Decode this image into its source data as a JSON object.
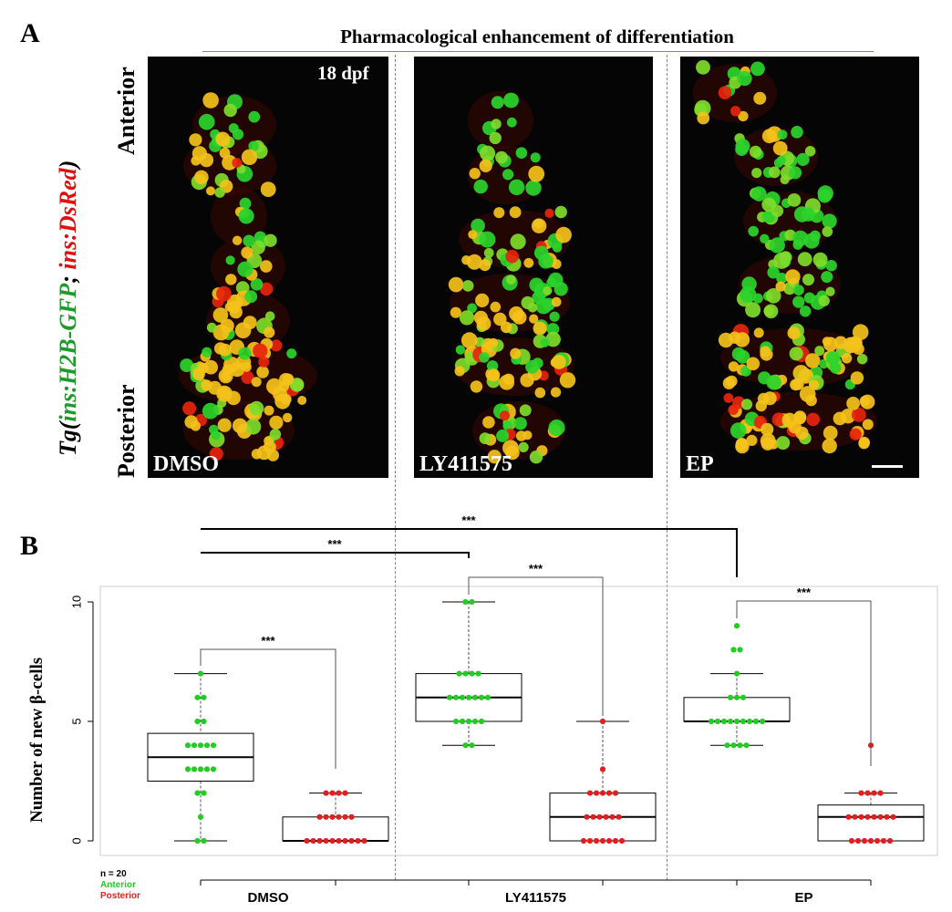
{
  "panel_a": {
    "letter": "A",
    "header": "Pharmacological enhancement of differentiation",
    "stage": "18 dpf",
    "y_label_top": "Anterior",
    "y_label_bottom": "Posterior",
    "transgene": {
      "prefix": "Tg(",
      "part1": "ins:H2B-GFP",
      "sep": "; ",
      "part2": "ins:DsRed",
      "suffix": ")"
    },
    "images": [
      {
        "label": "DMSO"
      },
      {
        "label": "LY411575"
      },
      {
        "label": "EP"
      }
    ],
    "colors": {
      "gfp": "#2bd42b",
      "dsred": "#e8240c",
      "merge": "#f4c21a"
    }
  },
  "panel_b": {
    "letter": "B",
    "significance": "***",
    "legend": {
      "n": "n = 20",
      "anterior": "Anterior",
      "posterior": "Posterior"
    },
    "colors": {
      "anterior": "#22cc22",
      "posterior": "#e02020"
    },
    "chart_data": {
      "type": "box",
      "ylabel": "Number of new β-cells",
      "ylim": [
        0,
        10
      ],
      "yticks": [
        0,
        5,
        10
      ],
      "categories": [
        "DMSO",
        "LY411575",
        "EP"
      ],
      "series": [
        {
          "name": "Anterior",
          "groups": [
            {
              "category": "DMSO",
              "min": 0,
              "q1": 2.5,
              "median": 3.5,
              "q3": 4.5,
              "max": 7,
              "points": [
                0,
                0,
                1,
                2,
                2,
                3,
                3,
                3,
                3,
                3,
                4,
                4,
                4,
                4,
                4,
                5,
                5,
                6,
                6,
                7
              ]
            },
            {
              "category": "LY411575",
              "min": 4,
              "q1": 5,
              "median": 6,
              "q3": 7,
              "max": 10,
              "points": [
                4,
                4,
                5,
                5,
                5,
                5,
                5,
                6,
                6,
                6,
                6,
                6,
                6,
                6,
                7,
                7,
                7,
                7,
                10,
                10
              ]
            },
            {
              "category": "EP",
              "min": 4,
              "q1": 5,
              "median": 5,
              "q3": 6,
              "max": 7,
              "points": [
                4,
                4,
                4,
                4,
                5,
                5,
                5,
                5,
                5,
                5,
                5,
                5,
                5,
                6,
                6,
                6,
                7,
                8,
                8,
                9
              ]
            }
          ]
        },
        {
          "name": "Posterior",
          "groups": [
            {
              "category": "DMSO",
              "min": 0,
              "q1": 0,
              "median": 0,
              "q3": 1,
              "max": 2,
              "points": [
                0,
                0,
                0,
                0,
                0,
                0,
                0,
                0,
                0,
                0,
                1,
                1,
                1,
                1,
                1,
                1,
                2,
                2,
                2,
                2
              ]
            },
            {
              "category": "LY411575",
              "min": 0,
              "q1": 0,
              "median": 1,
              "q3": 2,
              "max": 5,
              "points": [
                0,
                0,
                0,
                0,
                0,
                0,
                0,
                1,
                1,
                1,
                1,
                1,
                1,
                2,
                2,
                2,
                2,
                2,
                3,
                5
              ]
            },
            {
              "category": "EP",
              "min": 0,
              "q1": 0,
              "median": 1,
              "q3": 1.5,
              "max": 2,
              "points": [
                0,
                0,
                0,
                0,
                0,
                0,
                0,
                1,
                1,
                1,
                1,
                1,
                1,
                1,
                1,
                2,
                2,
                2,
                2,
                4
              ]
            }
          ]
        }
      ],
      "comparisons": [
        {
          "from": "DMSO Anterior",
          "to": "DMSO Posterior",
          "label": "***"
        },
        {
          "from": "LY411575 Anterior",
          "to": "LY411575 Posterior",
          "label": "***"
        },
        {
          "from": "EP Anterior",
          "to": "EP Posterior",
          "label": "***"
        },
        {
          "from": "DMSO Anterior",
          "to": "LY411575 Anterior",
          "label": "***"
        },
        {
          "from": "DMSO Anterior",
          "to": "EP Anterior",
          "label": "***"
        }
      ]
    }
  }
}
